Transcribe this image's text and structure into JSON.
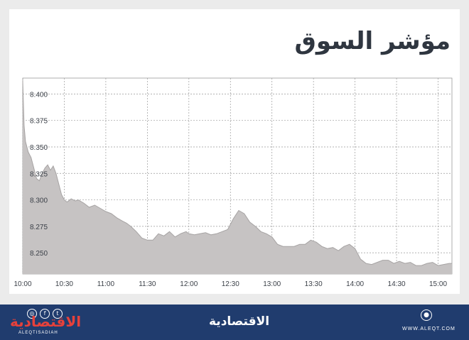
{
  "title": "مؤشر السوق",
  "colors": {
    "area_fill": "#c6c3c3",
    "line": "#a6a3a3",
    "grid": "#9a9a9a",
    "footer_bg": "#203c6e",
    "brand_red": "#e6413b"
  },
  "footer": {
    "brand_left": "الاقتصادية",
    "brand_left_sub": "ALEQTISADIAH",
    "brand_center": "الاقتصادية",
    "website": "WWW.ALEQT.COM",
    "social_icons": [
      "instagram-icon",
      "facebook-icon",
      "twitter-icon"
    ]
  },
  "chart_data": {
    "type": "area",
    "title": "مؤشر السوق",
    "xlabel": "",
    "ylabel": "",
    "x_ticks": [
      "10:00",
      "10:30",
      "11:00",
      "11:30",
      "12:00",
      "12:30",
      "13:00",
      "13:30",
      "14:00",
      "14:30",
      "15:00"
    ],
    "y_ticks": [
      "8.250",
      "8.275",
      "8.300",
      "8.325",
      "8.350",
      "8.375",
      "8.400"
    ],
    "ylim": [
      8.23,
      8.415
    ],
    "xlim": [
      "10:00",
      "15:10"
    ],
    "grid": true,
    "series": [
      {
        "x": [
          "10:00",
          "10:01",
          "10:02",
          "10:04",
          "10:06",
          "10:08",
          "10:10",
          "10:12",
          "10:14",
          "10:16",
          "10:18",
          "10:20",
          "10:22",
          "10:24",
          "10:26",
          "10:28",
          "10:30",
          "10:32",
          "10:35",
          "10:38",
          "10:40",
          "10:44",
          "10:48",
          "10:52",
          "10:56",
          "11:00",
          "11:04",
          "11:08",
          "11:12",
          "11:15",
          "11:18",
          "11:22",
          "11:26",
          "11:30",
          "11:34",
          "11:38",
          "11:42",
          "11:46",
          "11:50",
          "11:54",
          "11:58",
          "12:00",
          "12:04",
          "12:08",
          "12:12",
          "12:16",
          "12:20",
          "12:24",
          "12:28",
          "12:32",
          "12:36",
          "12:40",
          "12:44",
          "12:48",
          "12:52",
          "12:56",
          "13:00",
          "13:04",
          "13:08",
          "13:12",
          "13:16",
          "13:20",
          "13:24",
          "13:28",
          "13:32",
          "13:36",
          "13:40",
          "13:44",
          "13:48",
          "13:52",
          "13:56",
          "14:00",
          "14:04",
          "14:08",
          "14:12",
          "14:16",
          "14:20",
          "14:24",
          "14:28",
          "14:32",
          "14:36",
          "14:40",
          "14:44",
          "14:48",
          "14:52",
          "14:56",
          "15:00",
          "15:04",
          "15:08",
          "15:10"
        ],
        "values": [
          8.412,
          8.37,
          8.355,
          8.345,
          8.34,
          8.33,
          8.32,
          8.318,
          8.325,
          8.33,
          8.333,
          8.328,
          8.332,
          8.325,
          8.315,
          8.305,
          8.3,
          8.298,
          8.301,
          8.299,
          8.3,
          8.297,
          8.293,
          8.295,
          8.292,
          8.289,
          8.287,
          8.283,
          8.28,
          8.278,
          8.275,
          8.27,
          8.264,
          8.262,
          8.262,
          8.268,
          8.266,
          8.27,
          8.265,
          8.268,
          8.27,
          8.268,
          8.267,
          8.268,
          8.269,
          8.267,
          8.268,
          8.27,
          8.272,
          8.282,
          8.29,
          8.287,
          8.279,
          8.275,
          8.27,
          8.268,
          8.265,
          8.258,
          8.256,
          8.256,
          8.256,
          8.258,
          8.258,
          8.262,
          8.26,
          8.256,
          8.254,
          8.255,
          8.252,
          8.256,
          8.258,
          8.254,
          8.244,
          8.24,
          8.239,
          8.241,
          8.243,
          8.243,
          8.24,
          8.242,
          8.24,
          8.241,
          8.238,
          8.238,
          8.24,
          8.241,
          8.238,
          8.239,
          8.24,
          8.24
        ]
      }
    ]
  }
}
